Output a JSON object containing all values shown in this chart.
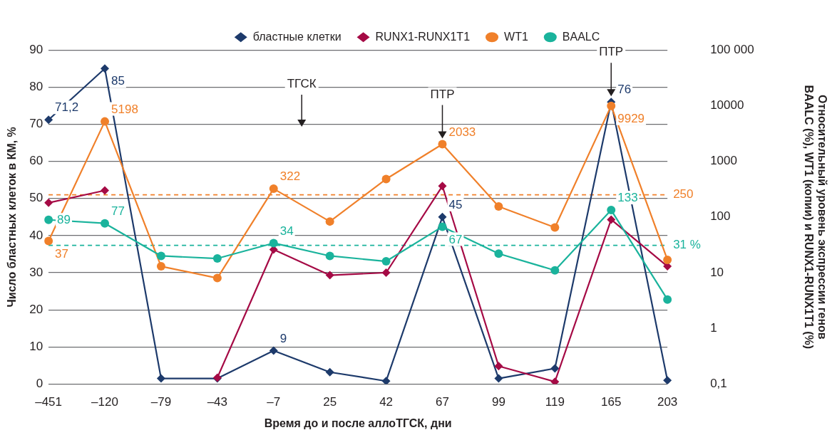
{
  "chart_data": {
    "type": "line",
    "xlabel": "Время до и после аллоТГСК, дни",
    "ylabel": "Число бластных клеток в КМ, %",
    "y2label": "Относительный уровень экспрессии генов\nBAALC (%), WT1 (копии) и RUNX1-RUNX1T1 (%)",
    "categories": [
      "–451",
      "–120",
      "–79",
      "–43",
      "–7",
      "25",
      "42",
      "67",
      "99",
      "119",
      "165",
      "203"
    ],
    "ylim": [
      0,
      90
    ],
    "yticks": [
      0,
      10,
      20,
      30,
      40,
      50,
      60,
      70,
      80,
      90
    ],
    "y2lim": [
      0.1,
      100000
    ],
    "y2ticks": [
      {
        "value": 0.1,
        "label": "0,1"
      },
      1,
      10,
      100,
      1000,
      10000,
      {
        "value": 100000,
        "label": "100 000"
      }
    ],
    "log": "y2",
    "grid": "y",
    "legend": "top",
    "series": [
      {
        "name": "бластные клетки",
        "color": "#1d3a6b",
        "marker": "diamond",
        "values": [
          71.2,
          85,
          1.5,
          1.5,
          9,
          3.2,
          0.8,
          45,
          1.5,
          4.2,
          76,
          1
        ],
        "value_labels": [
          "71,2",
          "85",
          null,
          null,
          "9",
          null,
          null,
          "45",
          null,
          null,
          "76",
          null
        ]
      },
      {
        "name": "RUNX1-RUNX1T1",
        "color": "#a50a45",
        "marker": "diamond",
        "axis": "y2",
        "values": [
          180,
          300,
          null,
          0.13,
          26,
          9,
          10,
          360,
          0.21,
          0.11,
          90,
          13
        ]
      },
      {
        "name": "WT1",
        "color": "#f0802a",
        "marker": "circle",
        "axis": "y2",
        "values": [
          37,
          5198,
          13,
          8,
          322,
          83,
          480,
          2033,
          155,
          65,
          9929,
          17
        ],
        "value_labels": [
          "37",
          "5198",
          null,
          null,
          "322",
          null,
          null,
          "2033",
          null,
          null,
          "9929",
          null
        ]
      },
      {
        "name": "BAALC",
        "color": "#1ab39c",
        "marker": "circle",
        "axis": "y2",
        "values": [
          89,
          77,
          20,
          18,
          34,
          20,
          16,
          67,
          22,
          11,
          133,
          3.3
        ],
        "value_labels": [
          "89",
          "77",
          null,
          null,
          "34",
          null,
          null,
          "67",
          null,
          null,
          "133",
          null
        ]
      }
    ],
    "ref_lines": [
      {
        "axis": "y2",
        "value": 31,
        "label": "31 %",
        "color": "#1ab39c",
        "line_style": "dashed"
      },
      {
        "axis": "y2",
        "value": 250,
        "label": "250",
        "color": "#f0802a",
        "line_style": "dashed"
      }
    ],
    "annotations": [
      "ТГСК",
      {
        "text": "ПТР",
        "x": "67"
      },
      {
        "text": "ПТР",
        "x": "165"
      }
    ]
  }
}
